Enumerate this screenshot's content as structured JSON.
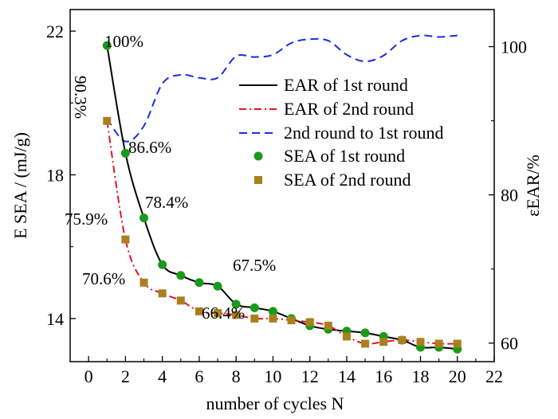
{
  "chart_data": {
    "type": "line",
    "xlabel": "number of cycles N",
    "ylabel_left": "E SEA / (mJ/g)",
    "ylabel_right": "εEAR/%",
    "xlim": [
      -1,
      22
    ],
    "ylim_left": [
      12.8,
      22.6
    ],
    "ylim_right": [
      57.5,
      105
    ],
    "x_ticks": [
      "0",
      "2",
      "4",
      "6",
      "8",
      "10",
      "12",
      "14",
      "16",
      "18",
      "20",
      "22"
    ],
    "y_left_ticks": [
      "14",
      "18",
      "22"
    ],
    "y_right_ticks": [
      "60",
      "80",
      "100"
    ],
    "legend_position": "upper right",
    "legend": [
      "EAR of 1st round",
      "EAR of 2nd round",
      "2nd round to 1st round",
      "SEA of 1st round",
      "SEA of 2nd round"
    ],
    "annotations": [
      "100%",
      "90.3%",
      "86.6%",
      "78.4%",
      "75.9%",
      "70.6%",
      "67.5%",
      "66.4%"
    ],
    "x": [
      1,
      2,
      3,
      4,
      5,
      6,
      7,
      8,
      9,
      10,
      11,
      12,
      13,
      14,
      15,
      16,
      17,
      18,
      19,
      20
    ],
    "series": [
      {
        "name": "SEA of 1st round",
        "axis": "left",
        "values": [
          21.6,
          18.6,
          16.8,
          15.5,
          15.2,
          15.0,
          14.9,
          14.4,
          14.3,
          14.2,
          14.0,
          13.8,
          13.7,
          13.65,
          13.6,
          13.5,
          13.4,
          13.2,
          13.2,
          13.15
        ]
      },
      {
        "name": "SEA of 2nd round",
        "axis": "left",
        "values": [
          19.5,
          16.2,
          15.0,
          14.7,
          14.5,
          14.2,
          14.15,
          14.1,
          14.0,
          14.0,
          13.95,
          13.9,
          13.8,
          13.5,
          13.3,
          13.35,
          13.4,
          13.35,
          13.3,
          13.3
        ]
      },
      {
        "name": "2nd round to 1st round",
        "axis": "right",
        "values": [
          90.3,
          87.2,
          89.3,
          95.0,
          96.2,
          95.8,
          95.8,
          98.7,
          98.6,
          98.9,
          100.5,
          101.0,
          100.8,
          98.9,
          98.0,
          98.8,
          100.8,
          101.5,
          101.3,
          101.5
        ]
      }
    ]
  },
  "colors": {
    "ear_first": "#000000",
    "ear_second": "#e8102a",
    "ratio": "#1a2be8",
    "sea_first": "#1a9a1a",
    "sea_second": "#a8801e"
  }
}
